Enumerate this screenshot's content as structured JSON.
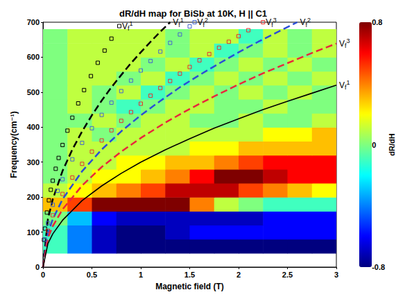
{
  "chart_data": {
    "type": "heatmap",
    "title": "dR/dH map for BiSb at 10K, H || C1",
    "x_label": "Magnetic field (T)",
    "y_label": "Frequency(cm⁻¹)",
    "xlim": [
      0,
      3
    ],
    "ylim": [
      0,
      700
    ],
    "xticks": [
      0,
      0.5,
      1,
      1.5,
      2,
      2.5,
      3
    ],
    "yticks": [
      0,
      100,
      200,
      300,
      400,
      500,
      600,
      700
    ],
    "grid": false,
    "heatmap": {
      "colorbar_label": "dR/dH",
      "zlim": [
        -0.8,
        0.8
      ],
      "zticks": [
        -0.8,
        0,
        0.8
      ],
      "x_edges": [
        0,
        0.25,
        0.5,
        0.75,
        1,
        1.25,
        1.5,
        1.75,
        2,
        2.25,
        2.5,
        2.75,
        3
      ],
      "y_edges": [
        40,
        80,
        120,
        160,
        200,
        240,
        280,
        320,
        360,
        400,
        440,
        480,
        520,
        560,
        600,
        640,
        680
      ],
      "values": [
        [
          -0.1,
          -0.4,
          -0.7,
          -0.8,
          -0.8,
          -0.8,
          -0.8,
          -0.8,
          -0.8,
          -0.8,
          -0.8,
          -0.8
        ],
        [
          -0.1,
          -0.4,
          -0.7,
          -0.8,
          -0.8,
          -0.7,
          -0.6,
          -0.6,
          -0.6,
          -0.6,
          -0.6,
          -0.6
        ],
        [
          0.0,
          -0.3,
          -0.6,
          -0.7,
          -0.7,
          -0.7,
          -0.7,
          -0.7,
          -0.7,
          -0.6,
          -0.6,
          -0.6
        ],
        [
          0.3,
          0.5,
          0.8,
          0.8,
          0.8,
          0.8,
          0.4,
          0.1,
          0.0,
          -0.1,
          -0.1,
          -0.1
        ],
        [
          0.1,
          0.2,
          0.3,
          0.4,
          0.5,
          0.7,
          0.7,
          0.7,
          0.5,
          0.4,
          0.3,
          0.2
        ],
        [
          0.0,
          0.1,
          0.2,
          0.2,
          0.3,
          0.4,
          0.6,
          0.8,
          0.8,
          0.7,
          0.6,
          0.6
        ],
        [
          0.0,
          0.1,
          0.1,
          0.2,
          0.2,
          0.3,
          0.3,
          0.4,
          0.5,
          0.6,
          0.6,
          0.6
        ],
        [
          0.0,
          0.1,
          0.1,
          0.1,
          0.1,
          0.1,
          0.2,
          0.2,
          0.3,
          0.3,
          0.3,
          0.3
        ],
        [
          0.0,
          0.1,
          0.0,
          0.1,
          0.1,
          0.1,
          0.1,
          0.1,
          0.1,
          0.2,
          0.2,
          0.3
        ],
        [
          0.0,
          0.0,
          0.1,
          0.0,
          0.1,
          0.1,
          0.0,
          0.0,
          0.1,
          0.0,
          0.0,
          0.1
        ],
        [
          0.0,
          0.1,
          0.0,
          -0.1,
          0.0,
          0.1,
          0.1,
          0.0,
          0.0,
          0.1,
          0.0,
          0.0
        ],
        [
          0.0,
          0.1,
          0.0,
          0.1,
          -0.1,
          0.0,
          0.1,
          0.0,
          0.1,
          0.0,
          0.1,
          0.0
        ],
        [
          0.0,
          0.1,
          0.1,
          0.0,
          0.1,
          -0.1,
          0.0,
          0.1,
          0.0,
          0.1,
          0.0,
          0.1
        ],
        [
          0.0,
          0.1,
          0.1,
          0.1,
          0.0,
          0.1,
          -0.1,
          0.0,
          0.1,
          0.0,
          0.1,
          0.0
        ],
        [
          0.0,
          0.1,
          0.1,
          0.1,
          0.1,
          0.0,
          0.1,
          -0.1,
          0.0,
          0.1,
          0.0,
          0.1
        ],
        [
          0.0,
          0.1,
          0.1,
          0.1,
          0.1,
          0.0,
          0.1,
          0.1,
          -0.1,
          0.1,
          0.0,
          0.1
        ]
      ]
    },
    "series": [
      {
        "name": "Vf1",
        "type": "line",
        "color": "#000000",
        "marker": "square",
        "line_style": "none",
        "x": [
          0.01,
          0.02,
          0.04,
          0.06,
          0.08,
          0.1,
          0.13,
          0.16,
          0.2,
          0.25,
          0.3,
          0.36,
          0.42,
          0.49,
          0.56,
          0.63,
          0.7,
          0.78
        ],
        "values": [
          78,
          110,
          156,
          191,
          221,
          247,
          281,
          312,
          349,
          390,
          427,
          468,
          506,
          546,
          584,
          619,
          653,
          689
        ]
      },
      {
        "name": "Vf1",
        "type": "line",
        "color": "#000000",
        "marker": "none",
        "line_style": "dashed",
        "x": [
          0,
          0.05,
          0.1,
          0.2,
          0.3,
          0.4,
          0.5,
          0.6,
          0.7,
          0.8,
          0.9,
          1.0,
          1.1,
          1.2,
          1.3
        ],
        "values": [
          0,
          137,
          194,
          275,
          336,
          388,
          434,
          476,
          514,
          549,
          583,
          614,
          644,
          673,
          700
        ]
      },
      {
        "name": "Vf2",
        "type": "line",
        "color": "#4466cc",
        "marker": "square",
        "line_style": "none",
        "x": [
          0.02,
          0.05,
          0.1,
          0.15,
          0.2,
          0.3,
          0.4,
          0.5,
          0.6,
          0.7,
          0.8,
          0.9,
          1.0,
          1.1,
          1.2,
          1.3,
          1.4,
          1.5,
          1.55
        ],
        "values": [
          79,
          126,
          178,
          218,
          251,
          308,
          355,
          397,
          435,
          470,
          503,
          533,
          562,
          589,
          616,
          641,
          665,
          688,
          700
        ]
      },
      {
        "name": "Vf3",
        "type": "line",
        "color": "#e03030",
        "marker": "square",
        "line_style": "none",
        "x": [
          0.05,
          0.1,
          0.2,
          0.3,
          0.4,
          0.5,
          0.6,
          0.7,
          0.8,
          0.9,
          1.0,
          1.1,
          1.2,
          1.3,
          1.4,
          1.5,
          1.6,
          1.7,
          1.8,
          1.9,
          2.0,
          2.1,
          2.25
        ],
        "values": [
          104,
          148,
          209,
          256,
          295,
          330,
          362,
          391,
          418,
          443,
          467,
          490,
          512,
          532,
          553,
          572,
          591,
          609,
          627,
          644,
          660,
          677,
          700
        ]
      },
      {
        "name": "Vf2",
        "type": "line",
        "color": "#2b4fd6",
        "marker": "none",
        "line_style": "dashed",
        "x": [
          0,
          0.05,
          0.1,
          0.2,
          0.4,
          0.6,
          0.8,
          1.0,
          1.2,
          1.4,
          1.6,
          1.8,
          2.0,
          2.2,
          2.4,
          2.6
        ],
        "values": [
          0,
          97,
          137,
          194,
          274,
          336,
          388,
          434,
          475,
          514,
          549,
          582,
          614,
          644,
          672,
          700
        ]
      },
      {
        "name": "Vf3",
        "type": "line",
        "color": "#e8283c",
        "marker": "none",
        "line_style": "dashed",
        "x": [
          0,
          0.05,
          0.1,
          0.2,
          0.4,
          0.6,
          0.8,
          1.0,
          1.25,
          1.5,
          1.75,
          2.0,
          2.25,
          2.5,
          2.75,
          3.0
        ],
        "values": [
          0,
          83,
          117,
          165,
          233,
          286,
          330,
          369,
          413,
          452,
          488,
          522,
          554,
          583,
          612,
          639
        ]
      },
      {
        "name": "Vf1",
        "type": "line",
        "color": "#000000",
        "marker": "none",
        "line_style": "solid",
        "x": [
          0,
          0.05,
          0.1,
          0.2,
          0.4,
          0.6,
          0.8,
          1.0,
          1.25,
          1.5,
          1.75,
          2.0,
          2.25,
          2.5,
          2.75,
          3.0
        ],
        "values": [
          0,
          67,
          95,
          134,
          190,
          232,
          268,
          300,
          335,
          367,
          397,
          424,
          450,
          474,
          497,
          520
        ]
      }
    ]
  }
}
